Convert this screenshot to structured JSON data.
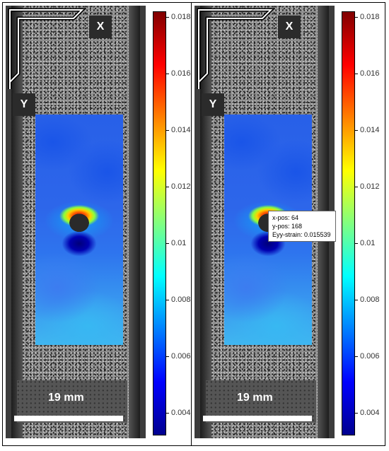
{
  "panels": [
    {
      "axis_x": "X",
      "axis_y": "Y",
      "scale_label": "19 mm",
      "colorbar_ticks": [
        "0.004",
        "0.006",
        "0.008",
        "0.01",
        "0.012",
        "0.014",
        "0.016",
        "0.018"
      ]
    },
    {
      "axis_x": "X",
      "axis_y": "Y",
      "scale_label": "19 mm",
      "colorbar_ticks": [
        "0.004",
        "0.006",
        "0.008",
        "0.01",
        "0.012",
        "0.014",
        "0.016",
        "0.018"
      ],
      "tooltip": {
        "x_pos": "x-pos: 64",
        "y_pos": "y-pos: 168",
        "strain": "Eyy-strain: 0.015539"
      }
    }
  ],
  "colorbar": {
    "colors": [
      "#00008f",
      "#0000ff",
      "#0080ff",
      "#00ffff",
      "#80ff80",
      "#ffff00",
      "#ff8000",
      "#ff0000",
      "#800000"
    ]
  }
}
